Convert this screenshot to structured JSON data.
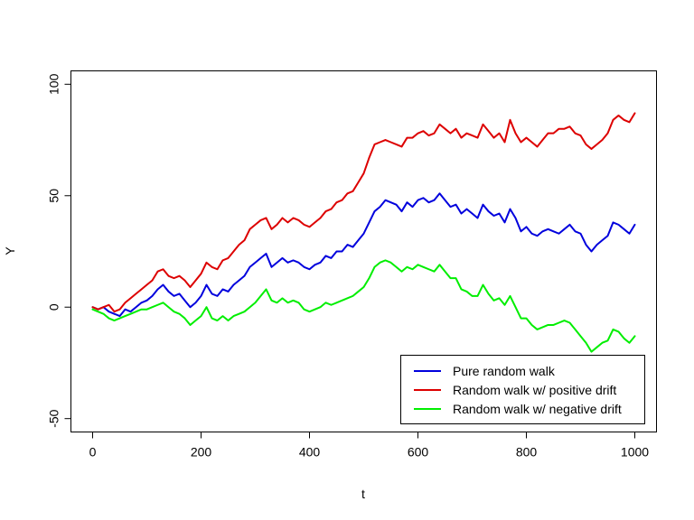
{
  "chart_data": {
    "type": "line",
    "title": "",
    "xlabel": "t",
    "ylabel": "Y",
    "xlim": [
      -40,
      1040
    ],
    "ylim": [
      -56,
      106
    ],
    "x_ticks": [
      0,
      200,
      400,
      600,
      800,
      1000
    ],
    "y_ticks": [
      -50,
      0,
      50,
      100
    ],
    "x_tick_labels": [
      "0",
      "200",
      "400",
      "600",
      "800",
      "1000"
    ],
    "y_tick_labels": [
      "-50",
      "0",
      "50",
      "100"
    ],
    "grid": false,
    "legend_position": "bottom-right",
    "series": [
      {
        "name": "Pure random walk",
        "color": "#0000dd",
        "x": [
          0,
          10,
          20,
          30,
          40,
          50,
          60,
          70,
          80,
          90,
          100,
          110,
          120,
          130,
          140,
          150,
          160,
          170,
          180,
          190,
          200,
          210,
          220,
          230,
          240,
          250,
          260,
          270,
          280,
          290,
          300,
          310,
          320,
          330,
          340,
          350,
          360,
          370,
          380,
          390,
          400,
          410,
          420,
          430,
          440,
          450,
          460,
          470,
          480,
          490,
          500,
          510,
          520,
          530,
          540,
          550,
          560,
          570,
          580,
          590,
          600,
          610,
          620,
          630,
          640,
          650,
          660,
          670,
          680,
          690,
          700,
          710,
          720,
          730,
          740,
          750,
          760,
          770,
          780,
          790,
          800,
          810,
          820,
          830,
          840,
          850,
          860,
          870,
          880,
          890,
          900,
          910,
          920,
          930,
          940,
          950,
          960,
          970,
          980,
          990,
          1000
        ],
        "values": [
          0,
          -1,
          0,
          -2,
          -3,
          -4,
          -1,
          -2,
          0,
          2,
          3,
          5,
          8,
          10,
          7,
          5,
          6,
          3,
          0,
          2,
          5,
          10,
          6,
          5,
          8,
          7,
          10,
          12,
          14,
          18,
          20,
          22,
          24,
          18,
          20,
          22,
          20,
          21,
          20,
          18,
          17,
          19,
          20,
          23,
          22,
          25,
          25,
          28,
          27,
          30,
          33,
          38,
          43,
          45,
          48,
          47,
          46,
          43,
          47,
          45,
          48,
          49,
          47,
          48,
          51,
          48,
          45,
          46,
          42,
          44,
          42,
          40,
          46,
          43,
          41,
          42,
          38,
          44,
          40,
          34,
          36,
          33,
          32,
          34,
          35,
          34,
          33,
          35,
          37,
          34,
          33,
          28,
          25,
          28,
          30,
          32,
          38,
          37,
          35,
          33,
          37
        ]
      },
      {
        "name": "Random walk w/ positive drift",
        "color": "#dd0000",
        "x": [
          0,
          10,
          20,
          30,
          40,
          50,
          60,
          70,
          80,
          90,
          100,
          110,
          120,
          130,
          140,
          150,
          160,
          170,
          180,
          190,
          200,
          210,
          220,
          230,
          240,
          250,
          260,
          270,
          280,
          290,
          300,
          310,
          320,
          330,
          340,
          350,
          360,
          370,
          380,
          390,
          400,
          410,
          420,
          430,
          440,
          450,
          460,
          470,
          480,
          490,
          500,
          510,
          520,
          530,
          540,
          550,
          560,
          570,
          580,
          590,
          600,
          610,
          620,
          630,
          640,
          650,
          660,
          670,
          680,
          690,
          700,
          710,
          720,
          730,
          740,
          750,
          760,
          770,
          780,
          790,
          800,
          810,
          820,
          830,
          840,
          850,
          860,
          870,
          880,
          890,
          900,
          910,
          920,
          930,
          940,
          950,
          960,
          970,
          980,
          990,
          1000
        ],
        "values": [
          0,
          -1,
          0,
          1,
          -2,
          -1,
          2,
          4,
          6,
          8,
          10,
          12,
          16,
          17,
          14,
          13,
          14,
          12,
          9,
          12,
          15,
          20,
          18,
          17,
          21,
          22,
          25,
          28,
          30,
          35,
          37,
          39,
          40,
          35,
          37,
          40,
          38,
          40,
          39,
          37,
          36,
          38,
          40,
          43,
          44,
          47,
          48,
          51,
          52,
          56,
          60,
          67,
          73,
          74,
          75,
          74,
          73,
          72,
          76,
          76,
          78,
          79,
          77,
          78,
          82,
          80,
          78,
          80,
          76,
          78,
          77,
          76,
          82,
          79,
          76,
          78,
          74,
          84,
          78,
          74,
          76,
          74,
          72,
          75,
          78,
          78,
          80,
          80,
          81,
          78,
          77,
          73,
          71,
          73,
          75,
          78,
          84,
          86,
          84,
          83,
          87
        ]
      },
      {
        "name": "Random walk w/ negative drift",
        "color": "#00ee00",
        "x": [
          0,
          10,
          20,
          30,
          40,
          50,
          60,
          70,
          80,
          90,
          100,
          110,
          120,
          130,
          140,
          150,
          160,
          170,
          180,
          190,
          200,
          210,
          220,
          230,
          240,
          250,
          260,
          270,
          280,
          290,
          300,
          310,
          320,
          330,
          340,
          350,
          360,
          370,
          380,
          390,
          400,
          410,
          420,
          430,
          440,
          450,
          460,
          470,
          480,
          490,
          500,
          510,
          520,
          530,
          540,
          550,
          560,
          570,
          580,
          590,
          600,
          610,
          620,
          630,
          640,
          650,
          660,
          670,
          680,
          690,
          700,
          710,
          720,
          730,
          740,
          750,
          760,
          770,
          780,
          790,
          800,
          810,
          820,
          830,
          840,
          850,
          860,
          870,
          880,
          890,
          900,
          910,
          920,
          930,
          940,
          950,
          960,
          970,
          980,
          990,
          1000
        ],
        "values": [
          -1,
          -2,
          -3,
          -5,
          -6,
          -5,
          -4,
          -3,
          -2,
          -1,
          -1,
          0,
          1,
          2,
          0,
          -2,
          -3,
          -5,
          -8,
          -6,
          -4,
          0,
          -5,
          -6,
          -4,
          -6,
          -4,
          -3,
          -2,
          0,
          2,
          5,
          8,
          3,
          2,
          4,
          2,
          3,
          2,
          -1,
          -2,
          -1,
          0,
          2,
          1,
          2,
          3,
          4,
          5,
          7,
          9,
          13,
          18,
          20,
          21,
          20,
          18,
          16,
          18,
          17,
          19,
          18,
          17,
          16,
          19,
          16,
          13,
          13,
          8,
          7,
          5,
          5,
          10,
          6,
          3,
          4,
          1,
          5,
          0,
          -5,
          -5,
          -8,
          -10,
          -9,
          -8,
          -8,
          -7,
          -6,
          -7,
          -10,
          -13,
          -16,
          -20,
          -18,
          -16,
          -15,
          -10,
          -11,
          -14,
          -16,
          -13
        ]
      }
    ]
  }
}
